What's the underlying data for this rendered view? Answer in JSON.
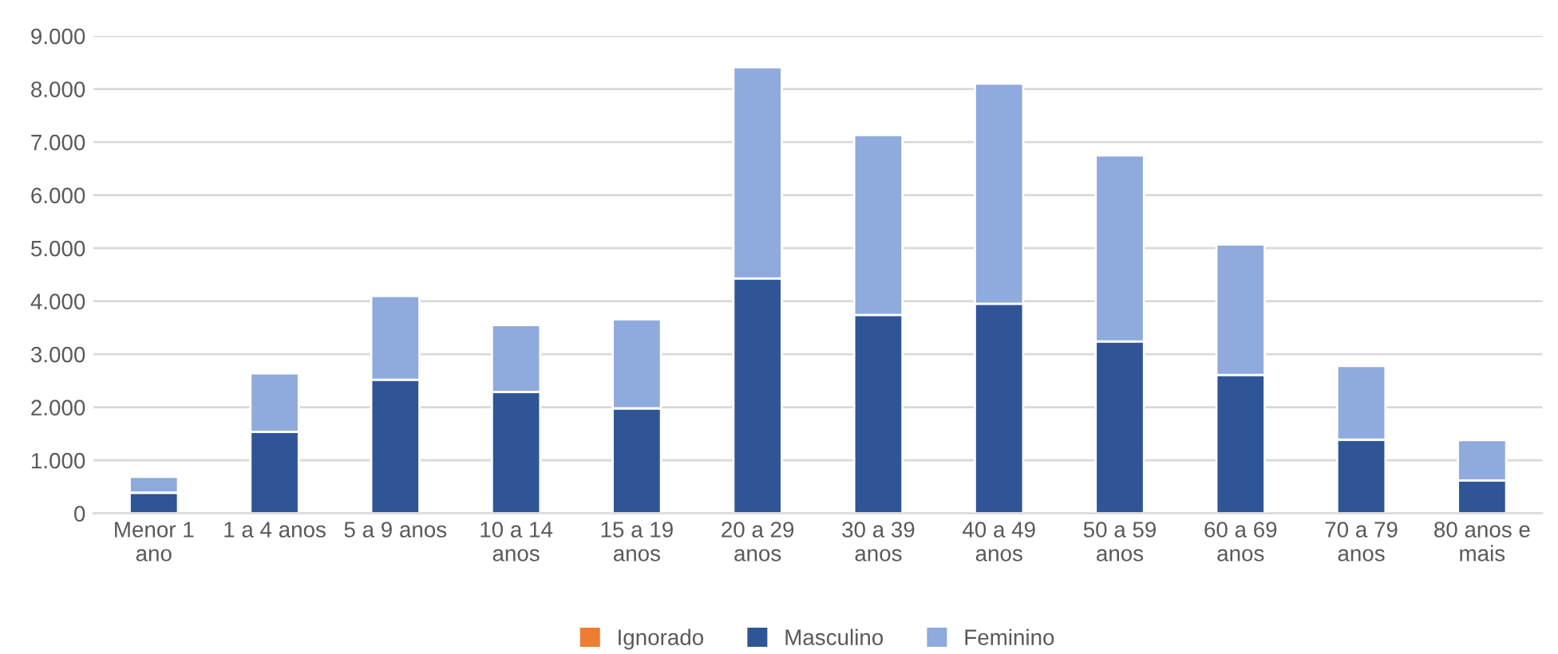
{
  "chart_data": {
    "type": "bar",
    "stacked": true,
    "categories": [
      "Menor 1\nano",
      "1 a 4 anos",
      "5 a 9 anos",
      "10 a 14\nanos",
      "15 a 19\nanos",
      "20 a 29\nanos",
      "30 a 39\nanos",
      "40 a 49\nanos",
      "50 a 59\nanos",
      "60 a 69\nanos",
      "70 a 79\nanos",
      "80 anos e\nmais"
    ],
    "series": [
      {
        "name": "Ignorado",
        "color": "#ed7d31",
        "values": [
          0,
          0,
          0,
          0,
          0,
          0,
          0,
          0,
          0,
          0,
          0,
          0
        ]
      },
      {
        "name": "Masculino",
        "color": "#2f5597",
        "values": [
          390,
          1540,
          2520,
          2290,
          1980,
          4430,
          3740,
          3950,
          3240,
          2610,
          1390,
          620
        ]
      },
      {
        "name": "Feminino",
        "color": "#8faadc",
        "values": [
          300,
          1100,
          1580,
          1260,
          1680,
          3980,
          3390,
          4150,
          3510,
          2460,
          1390,
          760
        ]
      }
    ],
    "ylim": [
      0,
      9000
    ],
    "yticks": [
      0,
      {
        "value": 1000,
        "label": "1.000"
      },
      {
        "value": 2000,
        "label": "2.000"
      },
      {
        "value": 3000,
        "label": "3.000"
      },
      {
        "value": 4000,
        "label": "4.000"
      },
      {
        "value": 5000,
        "label": "5.000"
      },
      {
        "value": 6000,
        "label": "6.000"
      },
      {
        "value": 7000,
        "label": "7.000"
      },
      {
        "value": 8000,
        "label": "8.000"
      },
      {
        "value": 9000,
        "label": "9.000"
      }
    ],
    "grid": "y",
    "legend": "bottom"
  }
}
